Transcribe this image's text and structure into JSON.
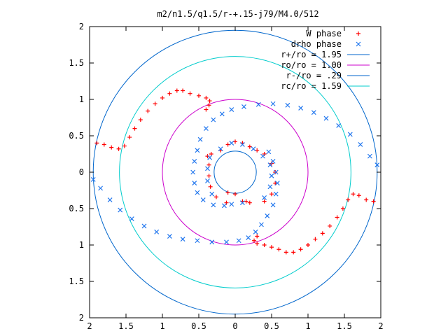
{
  "chart_data": {
    "type": "scatter",
    "title": "m2/n1.5/q1.5/r-+.15-j79/M4.0/512",
    "xlabel": "",
    "ylabel": "",
    "xlim": [
      -2,
      2
    ],
    "ylim": [
      -2,
      2
    ],
    "x_ticks": [
      "2",
      "1.5",
      "1",
      "0.5",
      "0",
      "0.5",
      "1",
      "1.5",
      "2"
    ],
    "y_ticks": [
      "2",
      "1.5",
      "1",
      "0.5",
      "0",
      "0.5",
      "1",
      "1.5",
      "2"
    ],
    "grid": false,
    "legend_position": "top-right",
    "series": [
      {
        "name": "W phase",
        "marker": "+",
        "color": "#ff0000",
        "points": [
          [
            -1.9,
            0.4
          ],
          [
            -1.8,
            0.38
          ],
          [
            -1.7,
            0.34
          ],
          [
            -1.6,
            0.32
          ],
          [
            -1.52,
            0.36
          ],
          [
            -1.45,
            0.48
          ],
          [
            -1.38,
            0.6
          ],
          [
            -1.3,
            0.72
          ],
          [
            -1.2,
            0.84
          ],
          [
            -1.1,
            0.94
          ],
          [
            -1.0,
            1.02
          ],
          [
            -0.9,
            1.08
          ],
          [
            -0.8,
            1.12
          ],
          [
            -0.72,
            1.12
          ],
          [
            -0.62,
            1.08
          ],
          [
            -0.5,
            1.05
          ],
          [
            -0.4,
            1.02
          ],
          [
            -0.35,
            0.98
          ],
          [
            -0.36,
            0.92
          ],
          [
            -0.4,
            0.86
          ],
          [
            1.9,
            -0.4
          ],
          [
            1.8,
            -0.38
          ],
          [
            1.7,
            -0.32
          ],
          [
            1.62,
            -0.3
          ],
          [
            1.55,
            -0.38
          ],
          [
            1.48,
            -0.5
          ],
          [
            1.4,
            -0.62
          ],
          [
            1.3,
            -0.74
          ],
          [
            1.2,
            -0.84
          ],
          [
            1.1,
            -0.92
          ],
          [
            1.0,
            -1.0
          ],
          [
            0.9,
            -1.06
          ],
          [
            0.8,
            -1.1
          ],
          [
            0.7,
            -1.1
          ],
          [
            0.6,
            -1.06
          ],
          [
            0.5,
            -1.03
          ],
          [
            0.4,
            -1.0
          ],
          [
            0.3,
            -0.98
          ],
          [
            0.26,
            -0.94
          ],
          [
            0.3,
            -0.88
          ],
          [
            -0.2,
            0.3
          ],
          [
            -0.1,
            0.38
          ],
          [
            0.0,
            0.42
          ],
          [
            0.1,
            0.4
          ],
          [
            0.2,
            0.35
          ],
          [
            0.3,
            0.3
          ],
          [
            -0.33,
            0.25
          ],
          [
            -0.36,
            0.1
          ],
          [
            -0.36,
            -0.05
          ],
          [
            -0.34,
            -0.2
          ],
          [
            -0.26,
            -0.34
          ],
          [
            -0.12,
            -0.42
          ],
          [
            -0.38,
            0.22
          ],
          [
            0.4,
            0.25
          ],
          [
            0.5,
            0.12
          ],
          [
            0.55,
            0.0
          ],
          [
            0.55,
            -0.15
          ],
          [
            0.5,
            -0.3
          ],
          [
            0.4,
            -0.4
          ],
          [
            0.2,
            -0.42
          ],
          [
            0.1,
            -0.4
          ],
          [
            -0.1,
            -0.28
          ],
          [
            0.0,
            -0.3
          ],
          [
            0.15,
            -0.4
          ]
        ]
      },
      {
        "name": "drho phase",
        "marker": "x",
        "color": "#2277ee",
        "points": [
          [
            -1.95,
            -0.1
          ],
          [
            -1.85,
            -0.22
          ],
          [
            -1.72,
            -0.38
          ],
          [
            -1.58,
            -0.52
          ],
          [
            -1.42,
            -0.64
          ],
          [
            -1.25,
            -0.74
          ],
          [
            -1.08,
            -0.82
          ],
          [
            -0.9,
            -0.88
          ],
          [
            -0.72,
            -0.92
          ],
          [
            -0.52,
            -0.94
          ],
          [
            -0.32,
            -0.96
          ],
          [
            -0.12,
            -0.96
          ],
          [
            0.05,
            -0.94
          ],
          [
            0.18,
            -0.9
          ],
          [
            0.28,
            -0.82
          ],
          [
            0.36,
            -0.72
          ],
          [
            0.44,
            -0.6
          ],
          [
            0.52,
            -0.45
          ],
          [
            0.56,
            -0.3
          ],
          [
            0.58,
            -0.15
          ],
          [
            0.56,
            0.0
          ],
          [
            0.52,
            0.15
          ],
          [
            0.46,
            0.28
          ],
          [
            1.95,
            0.1
          ],
          [
            1.85,
            0.22
          ],
          [
            1.72,
            0.38
          ],
          [
            1.58,
            0.52
          ],
          [
            1.42,
            0.64
          ],
          [
            1.25,
            0.74
          ],
          [
            1.08,
            0.82
          ],
          [
            0.9,
            0.88
          ],
          [
            0.72,
            0.92
          ],
          [
            0.52,
            0.94
          ],
          [
            0.32,
            0.93
          ],
          [
            0.12,
            0.9
          ],
          [
            -0.05,
            0.86
          ],
          [
            -0.18,
            0.8
          ],
          [
            -0.3,
            0.72
          ],
          [
            -0.4,
            0.6
          ],
          [
            -0.48,
            0.45
          ],
          [
            -0.52,
            0.3
          ],
          [
            -0.56,
            0.15
          ],
          [
            -0.58,
            0.0
          ],
          [
            -0.56,
            -0.15
          ],
          [
            -0.52,
            -0.28
          ],
          [
            -0.44,
            -0.38
          ],
          [
            -0.3,
            -0.45
          ],
          [
            -0.15,
            -0.46
          ],
          [
            -0.05,
            -0.44
          ],
          [
            0.1,
            -0.42
          ],
          [
            -0.2,
            0.32
          ],
          [
            -0.05,
            0.4
          ],
          [
            0.1,
            0.38
          ],
          [
            0.25,
            0.32
          ],
          [
            -0.35,
            0.2
          ],
          [
            -0.38,
            0.05
          ],
          [
            -0.38,
            -0.12
          ],
          [
            -0.32,
            -0.3
          ],
          [
            0.38,
            0.22
          ],
          [
            0.48,
            0.1
          ],
          [
            0.5,
            -0.05
          ],
          [
            0.48,
            -0.2
          ],
          [
            0.4,
            -0.35
          ]
        ]
      }
    ],
    "circles": [
      {
        "name": "r+/ro = 1.95",
        "radius": 1.95,
        "color": "#0066cc"
      },
      {
        "name": "ro/ro = 1.00",
        "radius": 1.0,
        "color": "#cc00cc"
      },
      {
        "name": "r-/ro = .29",
        "radius": 0.29,
        "color": "#0066cc"
      },
      {
        "name": "rc/ro = 1.59",
        "radius": 1.59,
        "color": "#00cccc"
      }
    ]
  }
}
